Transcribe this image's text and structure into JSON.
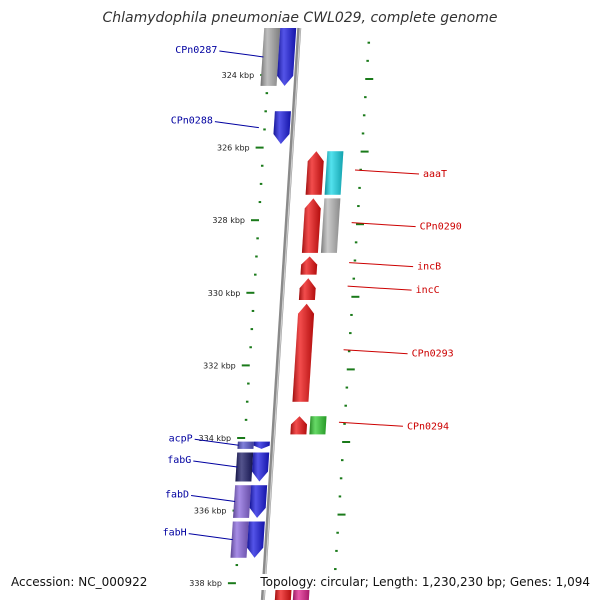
{
  "title": "Chlamydophila pneumoniae CWL029, complete genome",
  "accession": "Accession: NC_000922",
  "topology": "Topology: circular; Length: 1,230,230 bp; Genes: 1,094",
  "colors": {
    "forward_label": "#0000a0",
    "reverse_label": "#cc0000",
    "tick": "#1a7a1a",
    "backbone": "#8a8a8a"
  },
  "scale": {
    "unit": "kbp",
    "ticks": [
      {
        "kbp": 324,
        "label": "324 kbp"
      },
      {
        "kbp": 326,
        "label": "326 kbp"
      },
      {
        "kbp": 328,
        "label": "328 kbp"
      },
      {
        "kbp": 330,
        "label": "330 kbp"
      },
      {
        "kbp": 332,
        "label": "332 kbp"
      },
      {
        "kbp": 334,
        "label": "334 kbp"
      },
      {
        "kbp": 336,
        "label": "336 kbp"
      },
      {
        "kbp": 338,
        "label": "338 kbp"
      }
    ]
  },
  "genes": [
    {
      "label": "CPn0287",
      "strand": "forward",
      "start_kbp": 322.6,
      "end_kbp": 324.3,
      "color": "#1a1ae0",
      "partner": "#a8a8a8"
    },
    {
      "label": "CPn0288",
      "strand": "forward",
      "start_kbp": 325.0,
      "end_kbp": 325.9,
      "color": "#1a1ae0"
    },
    {
      "label": "aaaT",
      "strand": "reverse",
      "start_kbp": 326.1,
      "end_kbp": 327.3,
      "color": "#ee1111",
      "partner": "#19d8e8"
    },
    {
      "label": "CPn0290",
      "strand": "reverse",
      "start_kbp": 327.4,
      "end_kbp": 328.9,
      "color": "#ee1111",
      "partner": "#b8b8b8"
    },
    {
      "label": "incB",
      "strand": "reverse",
      "start_kbp": 329.0,
      "end_kbp": 329.5,
      "color": "#ee1111"
    },
    {
      "label": "incC",
      "strand": "reverse",
      "start_kbp": 329.6,
      "end_kbp": 330.2,
      "color": "#ee1111"
    },
    {
      "label": "CPn0293",
      "strand": "reverse",
      "start_kbp": 330.3,
      "end_kbp": 333.0,
      "color": "#ee1111"
    },
    {
      "label": "CPn0294",
      "strand": "reverse",
      "start_kbp": 333.4,
      "end_kbp": 333.9,
      "color": "#ee1111",
      "partner": "#33cc33"
    },
    {
      "label": "acpP",
      "strand": "forward",
      "start_kbp": 334.1,
      "end_kbp": 334.3,
      "color": "#1a1ae0",
      "partner": "#5555cc"
    },
    {
      "label": "fabG",
      "strand": "forward",
      "start_kbp": 334.4,
      "end_kbp": 335.2,
      "color": "#1a1ae0",
      "partner": "#1a1a66"
    },
    {
      "label": "fabD",
      "strand": "forward",
      "start_kbp": 335.3,
      "end_kbp": 336.2,
      "color": "#1a1ae0",
      "partner": "#8866dd"
    },
    {
      "label": "fabH",
      "strand": "forward",
      "start_kbp": 336.3,
      "end_kbp": 337.3,
      "color": "#1a1ae0",
      "partner": "#8866dd"
    }
  ]
}
